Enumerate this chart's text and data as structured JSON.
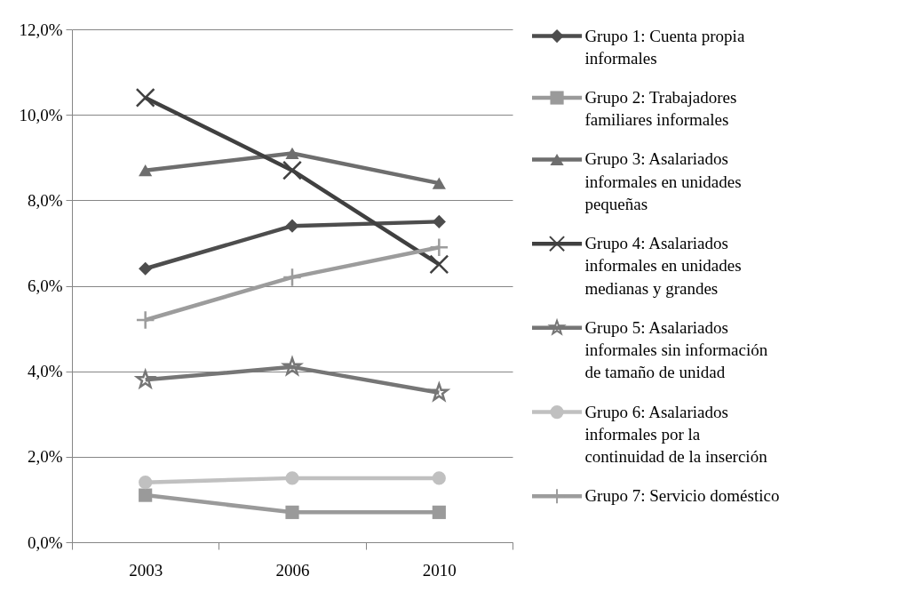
{
  "chart_data": {
    "type": "line",
    "categories": [
      "2003",
      "2006",
      "2010"
    ],
    "series": [
      {
        "name": "Grupo 1: Cuenta propia informales",
        "color": "#4d4d4d",
        "marker": "diamond",
        "values": [
          6.4,
          7.4,
          7.5
        ]
      },
      {
        "name": "Grupo 2: Trabajadores familiares informales",
        "color": "#9a9a9a",
        "marker": "square",
        "values": [
          1.1,
          0.7,
          0.7
        ]
      },
      {
        "name": "Grupo 3: Asalariados informales en unidades pequeñas",
        "color": "#6e6e6e",
        "marker": "triangle",
        "values": [
          8.7,
          9.1,
          8.4
        ]
      },
      {
        "name": "Grupo 4: Asalariados informales en unidades medianas y grandes",
        "color": "#404040",
        "marker": "cross",
        "values": [
          10.4,
          8.7,
          6.5
        ]
      },
      {
        "name": "Grupo 5: Asalariados informales sin información de tamaño de unidad",
        "color": "#767676",
        "marker": "star",
        "values": [
          3.8,
          4.1,
          3.5
        ]
      },
      {
        "name": "Grupo 6: Asalariados informales por la continuidad de la inserción",
        "color": "#c0c0c0",
        "marker": "circle",
        "values": [
          1.4,
          1.5,
          1.5
        ]
      },
      {
        "name": "Grupo 7: Servicio doméstico",
        "color": "#9c9c9c",
        "marker": "plus",
        "values": [
          5.2,
          6.2,
          6.9
        ]
      }
    ],
    "ylim": [
      0,
      12
    ],
    "yticks": [
      {
        "value": 0,
        "label": "0,0%"
      },
      {
        "value": 2,
        "label": "2,0%"
      },
      {
        "value": 4,
        "label": "4,0%"
      },
      {
        "value": 6,
        "label": "6,0%"
      },
      {
        "value": 8,
        "label": "8,0%"
      },
      {
        "value": 10,
        "label": "10,0%"
      },
      {
        "value": 12,
        "label": "12,0%"
      }
    ],
    "grid": "y",
    "legend": "right",
    "line_style": "solid"
  }
}
